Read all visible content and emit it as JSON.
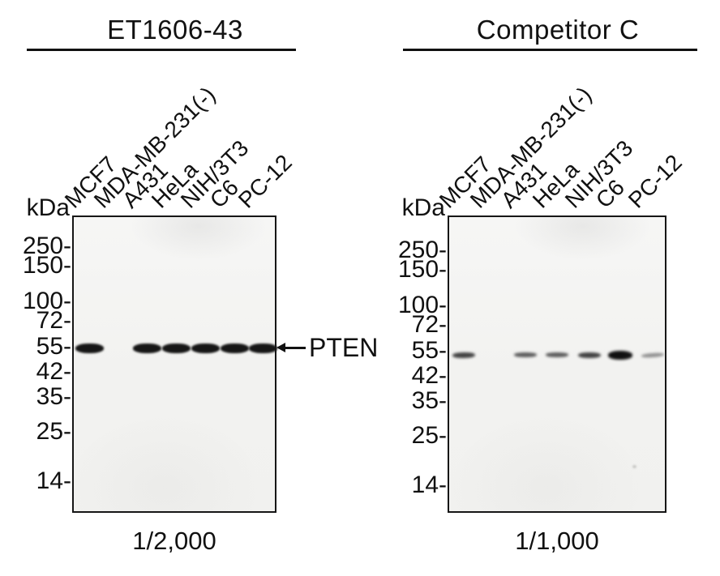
{
  "panels": [
    {
      "title": "ET1606-43",
      "kda_label": "kDa",
      "markers": [
        "250-",
        "150-",
        "100-",
        "72-",
        "55-",
        "42-",
        "35-",
        "25-",
        "14-"
      ],
      "lanes": [
        "MCF7",
        "MDA-MB-231(-)",
        "A431",
        "HeLa",
        "NIH/3T3",
        "C6",
        "PC-12"
      ],
      "bands": [
        {
          "lane": "MCF7",
          "intensity": "strong"
        },
        {
          "lane": "A431",
          "intensity": "strong"
        },
        {
          "lane": "HeLa",
          "intensity": "strong"
        },
        {
          "lane": "NIH/3T3",
          "intensity": "strong"
        },
        {
          "lane": "C6",
          "intensity": "strong"
        },
        {
          "lane": "PC-12",
          "intensity": "strong"
        }
      ],
      "dilution": "1/2,000"
    },
    {
      "title": "Competitor C",
      "kda_label": "kDa",
      "markers": [
        "250-",
        "150-",
        "100-",
        "72-",
        "55-",
        "42-",
        "35-",
        "25-",
        "14-"
      ],
      "lanes": [
        "MCF7",
        "MDA-MB-231(-)",
        "A431",
        "HeLa",
        "NIH/3T3",
        "C6",
        "PC-12"
      ],
      "bands": [
        {
          "lane": "MCF7",
          "intensity": "medium"
        },
        {
          "lane": "A431",
          "intensity": "weak"
        },
        {
          "lane": "HeLa",
          "intensity": "weak"
        },
        {
          "lane": "NIH/3T3",
          "intensity": "medium"
        },
        {
          "lane": "C6",
          "intensity": "strong"
        },
        {
          "lane": "PC-12",
          "intensity": "faint"
        }
      ],
      "dilution": "1/1,000"
    }
  ],
  "annotation": {
    "label": "PTEN",
    "icon": "left-arrow-icon"
  },
  "colors": {
    "ink": "#111111",
    "blot_background": "#f2f2f0",
    "band_strong": "#161616",
    "band_medium": "#424242",
    "band_weak": "#5c5c5c",
    "band_faint": "#909090"
  }
}
